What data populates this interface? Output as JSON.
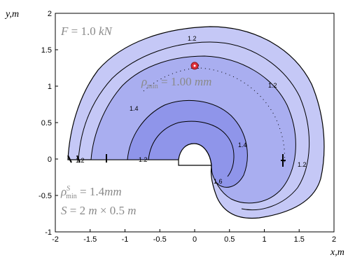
{
  "chart_data": {
    "type": "contour",
    "xlabel": "x,m",
    "ylabel": "y,m",
    "xlim": [
      -2,
      2
    ],
    "ylim": [
      -1,
      2
    ],
    "xticks": [
      "-2",
      "-1.5",
      "-1",
      "-0.5",
      "0",
      "0.5",
      "1",
      "1.5",
      "2"
    ],
    "yticks": [
      "-1",
      "-0.5",
      "0",
      "0.5",
      "1",
      "1.5",
      "2"
    ],
    "contour_levels": [
      "1.2",
      "1.4",
      "1.6"
    ],
    "colors": {
      "fill_light": "#c5c8f6",
      "fill_mid": "#a9aef0",
      "fill_dark": "#8f95ea",
      "line": "#000000",
      "marker": "#e0303a",
      "annotation_text": "#8a8a8a"
    },
    "annotations": {
      "force_label": "F = 1.0 kN",
      "rho_min": "ρmin = 1.00 mm",
      "rho_s_min": "ρSmin = 1.4 mm",
      "size": "S = 2 m × 0.5 m"
    },
    "marker_point": {
      "x": 0.0,
      "y": 1.28
    }
  }
}
